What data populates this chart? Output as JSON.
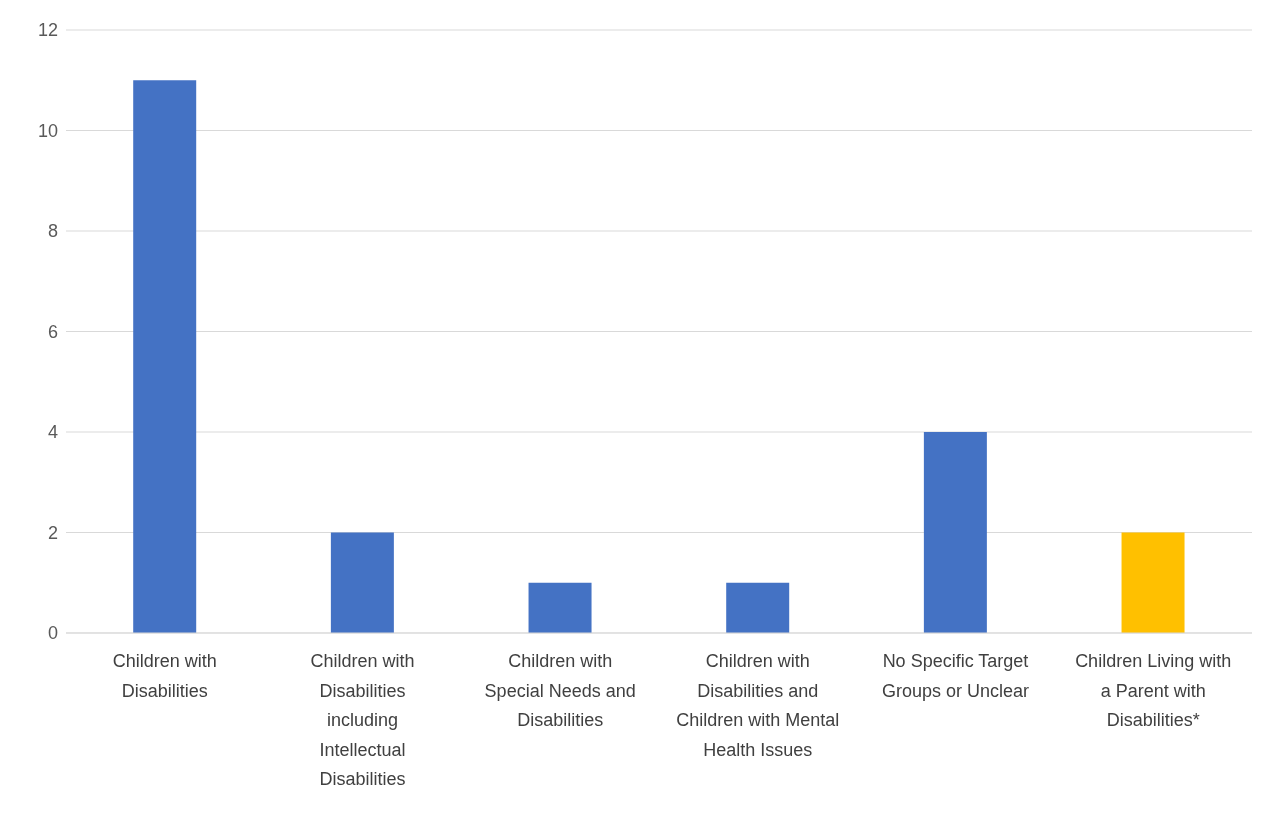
{
  "chart_data": {
    "type": "bar",
    "categories": [
      "Children with Disabilities",
      "Children with Disabilities including Intellectual Disabilities",
      "Children with Special Needs and Disabilities",
      "Children with Disabilities and Children with Mental Health Issues",
      "No Specific Target Groups or Unclear",
      "Children Living with a Parent with Disabilities*"
    ],
    "values": [
      11,
      2,
      1,
      1,
      4,
      2
    ],
    "colors": [
      "#4472c4",
      "#4472c4",
      "#4472c4",
      "#4472c4",
      "#4472c4",
      "#ffc000"
    ],
    "ylim": [
      0,
      12
    ],
    "yticks": [
      0,
      2,
      4,
      6,
      8,
      10,
      12
    ],
    "grid": "y"
  }
}
